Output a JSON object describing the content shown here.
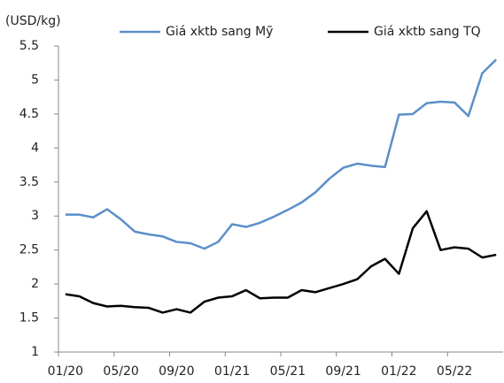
{
  "chart_data": {
    "type": "line",
    "y_label": "(USD/kg)",
    "categories": [
      "01/20",
      null,
      null,
      null,
      "05/20",
      null,
      null,
      null,
      "09/20",
      null,
      null,
      null,
      "01/21",
      null,
      null,
      null,
      "05/21",
      null,
      null,
      null,
      "09/21",
      null,
      null,
      null,
      "01/22",
      null,
      null,
      null,
      "05/22",
      null,
      null,
      null
    ],
    "series": [
      {
        "name": "Giá xktb sang Mỹ",
        "color": "#5b8fc9",
        "values": [
          3.02,
          3.02,
          2.98,
          3.1,
          2.95,
          2.77,
          2.73,
          2.7,
          2.62,
          2.6,
          2.52,
          2.62,
          2.88,
          2.84,
          2.9,
          2.99,
          3.09,
          3.2,
          3.35,
          3.55,
          3.71,
          3.77,
          3.74,
          3.72,
          4.49,
          4.5,
          4.66,
          4.68,
          4.67,
          4.47,
          5.1,
          5.3
        ]
      },
      {
        "name": "Giá xktb sang TQ",
        "color": "#000000",
        "values": [
          1.85,
          1.82,
          1.72,
          1.67,
          1.68,
          1.66,
          1.65,
          1.58,
          1.63,
          1.58,
          1.74,
          1.8,
          1.82,
          1.91,
          1.79,
          1.8,
          1.8,
          1.91,
          1.88,
          1.94,
          2.0,
          2.07,
          2.26,
          2.37,
          2.15,
          2.82,
          3.07,
          2.5,
          2.54,
          2.52,
          2.39,
          2.43
        ]
      }
    ],
    "ylim": [
      1,
      5.5
    ],
    "yticks": [
      1,
      1.5,
      2,
      2.5,
      3,
      3.5,
      4,
      4.5,
      5,
      5.5
    ],
    "legend": "top",
    "grid": false
  }
}
